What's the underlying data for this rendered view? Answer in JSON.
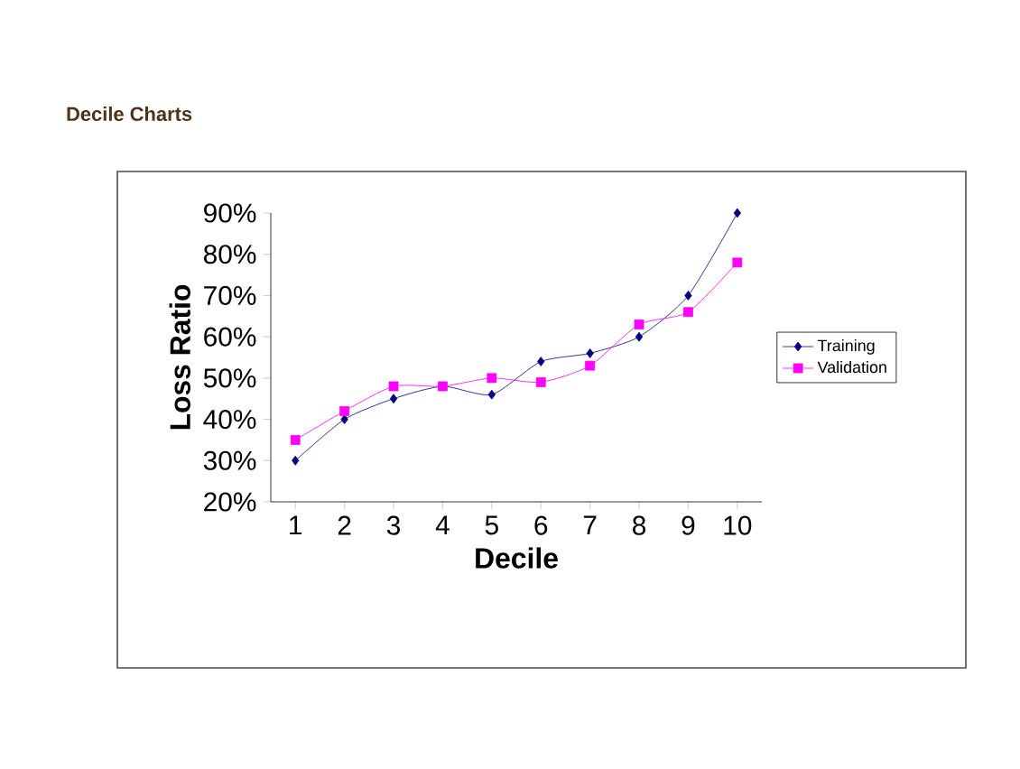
{
  "chart_data": {
    "type": "line",
    "title": "Decile Charts",
    "xlabel": "Decile",
    "ylabel": "Loss Ratio",
    "categories": [
      "1",
      "2",
      "3",
      "4",
      "5",
      "6",
      "7",
      "8",
      "9",
      "10"
    ],
    "series": [
      {
        "name": "Training",
        "color": "#000080",
        "marker": "diamond",
        "values": [
          30,
          40,
          45,
          48,
          46,
          54,
          56,
          60,
          70,
          90
        ]
      },
      {
        "name": "Validation",
        "color": "#ff00ff",
        "marker": "square",
        "values": [
          35,
          42,
          48,
          48,
          50,
          49,
          53,
          63,
          66,
          78
        ]
      }
    ],
    "ylim": [
      20,
      90
    ],
    "yticks": [
      {
        "value": 20,
        "label": "20%"
      },
      {
        "value": 30,
        "label": "30%"
      },
      {
        "value": 40,
        "label": "40%"
      },
      {
        "value": 50,
        "label": "50%"
      },
      {
        "value": 60,
        "label": "60%"
      },
      {
        "value": 70,
        "label": "70%"
      },
      {
        "value": 80,
        "label": "80%"
      },
      {
        "value": 90,
        "label": "90%"
      }
    ],
    "legend": "right",
    "grid": false
  }
}
